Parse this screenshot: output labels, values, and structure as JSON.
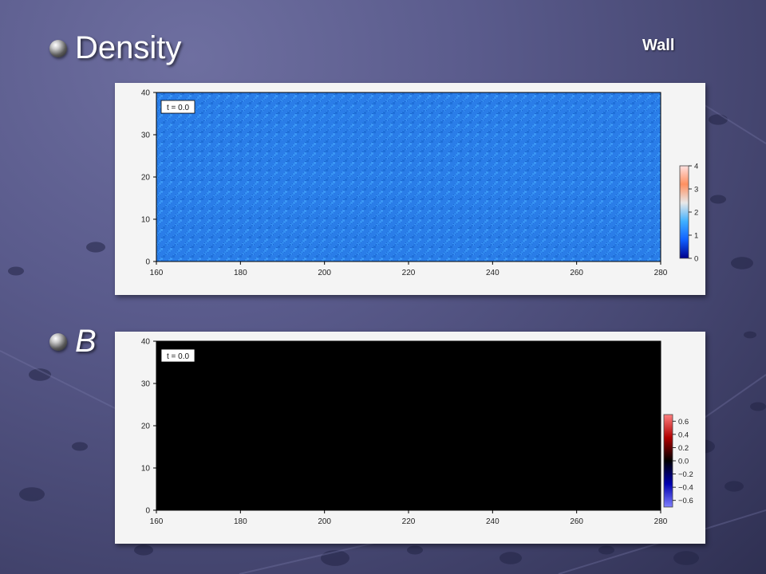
{
  "slide": {
    "wall_label": "Wall",
    "bullets": [
      {
        "label": "Density",
        "italic": false
      },
      {
        "label": "B",
        "italic": true
      }
    ]
  },
  "chart_data": [
    {
      "type": "heatmap",
      "title": "",
      "time_label": "t = 0.0",
      "xlim": [
        160,
        280
      ],
      "ylim": [
        0,
        40
      ],
      "xticks": [
        160,
        180,
        200,
        220,
        240,
        260,
        280
      ],
      "yticks": [
        0,
        10,
        20,
        30,
        40
      ],
      "xtick_labels": [
        "160",
        "180",
        "200",
        "220",
        "240",
        "260",
        "280"
      ],
      "ytick_labels": [
        "0",
        "10",
        "20",
        "30",
        "40"
      ],
      "field_description_value": 1,
      "colorbar": {
        "range": [
          0,
          4
        ],
        "ticks": [
          0,
          1,
          2,
          3,
          4
        ],
        "tick_labels": [
          "0",
          "1",
          "2",
          "3",
          "4"
        ],
        "colors": [
          "#00008c",
          "#1060ff",
          "#40b0ff",
          "#e8e8e8",
          "#ff9060",
          "#ffe0e0"
        ]
      },
      "field_color": "#2a7de8"
    },
    {
      "type": "heatmap",
      "title": "",
      "time_label": "t = 0.0",
      "xlim": [
        160,
        280
      ],
      "ylim": [
        0,
        40
      ],
      "xticks": [
        160,
        180,
        200,
        220,
        240,
        260,
        280
      ],
      "yticks": [
        0,
        10,
        20,
        30,
        40
      ],
      "xtick_labels": [
        "160",
        "180",
        "200",
        "220",
        "240",
        "260",
        "280"
      ],
      "ytick_labels": [
        "0",
        "10",
        "20",
        "30",
        "40"
      ],
      "field_description_value": 0.0,
      "colorbar": {
        "range": [
          -0.7,
          0.7
        ],
        "ticks": [
          0.6,
          0.4,
          0.2,
          0.0,
          -0.2,
          -0.4,
          -0.6
        ],
        "tick_labels": [
          "0.6",
          "0.4",
          "0.2",
          "0.0",
          "−0.2",
          "−0.4",
          "−0.6"
        ],
        "colors": [
          "#8080ff",
          "#0000b0",
          "#000000",
          "#b00000",
          "#ff8080"
        ]
      },
      "field_color": "#000000"
    }
  ]
}
